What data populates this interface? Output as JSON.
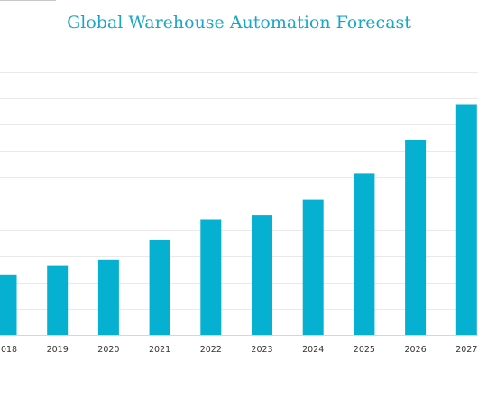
{
  "chart_data": {
    "type": "bar",
    "title": "Global Warehouse Automation Forecast",
    "xlabel": "",
    "ylabel": "",
    "categories": [
      "2018",
      "2019",
      "2020",
      "2021",
      "2022",
      "2023",
      "2024",
      "2025",
      "2026",
      "2027"
    ],
    "series": [
      {
        "values": [
          23,
          26.5,
          28.5,
          36,
          44,
          45.5,
          51.5,
          61.5,
          74,
          87.5
        ]
      }
    ],
    "ylim": [
      0,
      100
    ],
    "gridlines": 10,
    "grid": true,
    "legend": "none",
    "bar_color": "#05b0d1",
    "title_color": "#19a7c6"
  }
}
